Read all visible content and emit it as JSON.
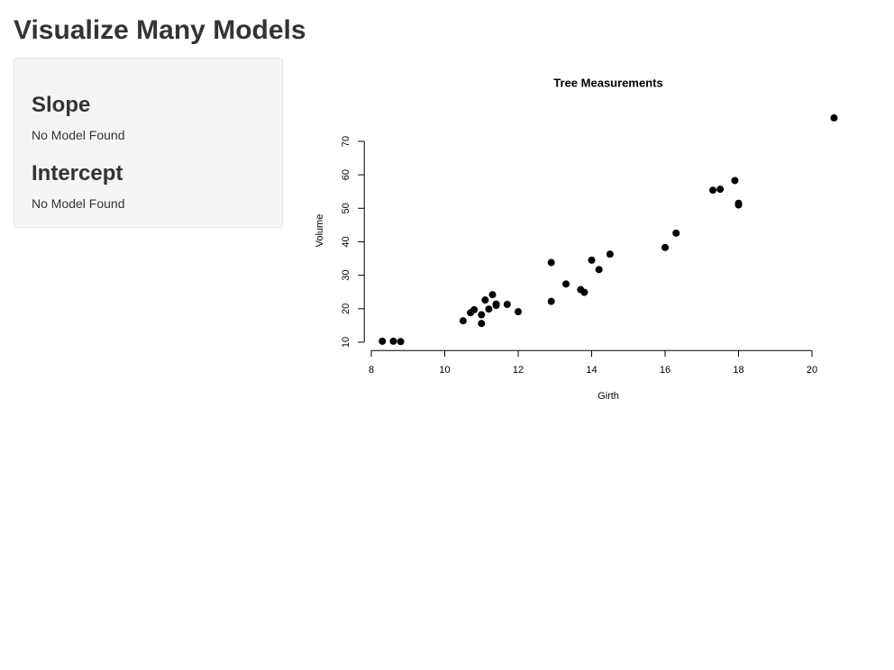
{
  "header": {
    "title": "Visualize Many Models"
  },
  "sidebar": {
    "sections": [
      {
        "heading": "Slope",
        "text": "No Model Found"
      },
      {
        "heading": "Intercept",
        "text": "No Model Found"
      }
    ]
  },
  "chart_data": {
    "type": "scatter",
    "title": "Tree Measurements",
    "x_label": "Girth",
    "y_label": "Volume",
    "x": [
      8.3,
      8.6,
      8.8,
      10.5,
      10.7,
      10.8,
      11.0,
      11.0,
      11.1,
      11.2,
      11.3,
      11.4,
      11.4,
      11.7,
      12.0,
      12.9,
      12.9,
      13.3,
      13.7,
      13.8,
      14.0,
      14.2,
      14.5,
      16.0,
      16.3,
      17.3,
      17.5,
      17.9,
      18.0,
      18.0,
      20.6
    ],
    "y": [
      10.3,
      10.3,
      10.2,
      16.4,
      18.8,
      19.7,
      15.6,
      18.2,
      22.6,
      19.9,
      24.2,
      21.0,
      21.4,
      21.3,
      19.1,
      22.2,
      33.8,
      27.4,
      25.7,
      24.9,
      34.5,
      31.7,
      36.3,
      38.3,
      42.6,
      55.4,
      55.7,
      58.3,
      51.5,
      51.0,
      77.0
    ],
    "color": "#000000",
    "xlim": [
      7.808,
      21.092
    ],
    "ylim": [
      7.528,
      79.672
    ],
    "xticks": [
      8,
      10,
      12,
      14,
      16,
      18,
      20
    ],
    "yticks": [
      10,
      20,
      30,
      40,
      50,
      60,
      70
    ]
  }
}
